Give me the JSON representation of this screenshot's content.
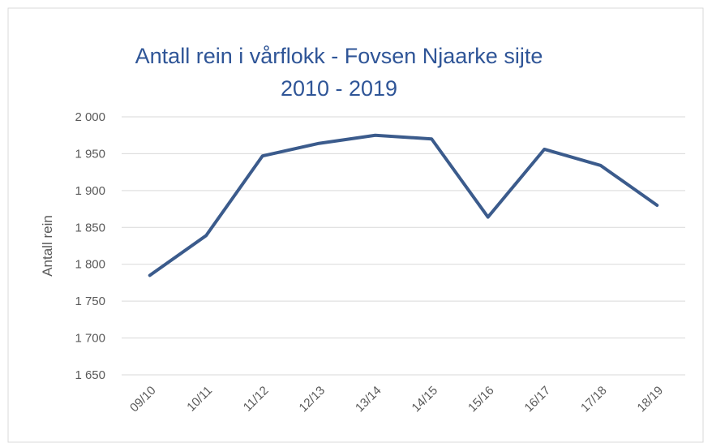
{
  "chart_data": {
    "type": "line",
    "title": [
      "Antall rein i vårflokk - Fovsen Njaarke sijte",
      "2010 - 2019"
    ],
    "y_label": "Antall rein",
    "categories": [
      "09/10",
      "10/11",
      "11/12",
      "12/13",
      "13/14",
      "14/15",
      "15/16",
      "16/17",
      "17/18",
      "18/19"
    ],
    "series": [
      {
        "name": "Antall rein",
        "color": "#3b5b8c",
        "values": [
          1785,
          1839,
          1947,
          1964,
          1975,
          1970,
          1864,
          1956,
          1934,
          1880
        ]
      }
    ],
    "ylim": [
      1650,
      2000
    ],
    "yticks": [
      {
        "value": 1650,
        "label": "1 650"
      },
      {
        "value": 1700,
        "label": "1 700"
      },
      {
        "value": 1750,
        "label": "1 750"
      },
      {
        "value": 1800,
        "label": "1 800"
      },
      {
        "value": 1850,
        "label": "1 850"
      },
      {
        "value": 1900,
        "label": "1 900"
      },
      {
        "value": 1950,
        "label": "1 950"
      },
      {
        "value": 2000,
        "label": "2 000"
      }
    ],
    "grid": true
  }
}
